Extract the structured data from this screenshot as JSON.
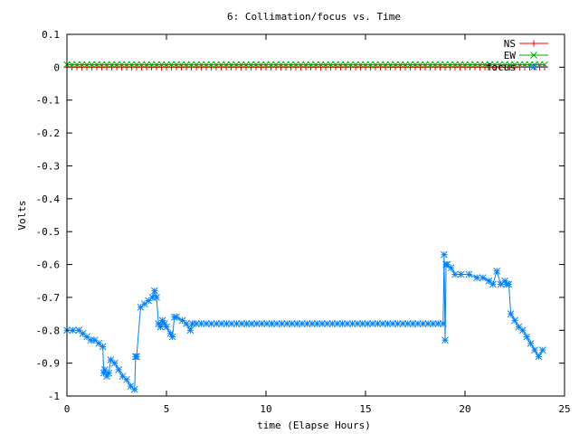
{
  "chart_data": {
    "type": "line",
    "title": "6: Collimation/focus vs. Time",
    "xlabel": "time (Elapse Hours)",
    "ylabel": "Volts",
    "xlim": [
      0,
      25
    ],
    "ylim": [
      -1,
      0.1
    ],
    "x_ticks": [
      "0",
      "5",
      "10",
      "15",
      "20",
      "25"
    ],
    "y_ticks": [
      "0.1",
      "0",
      "-0.1",
      "-0.2",
      "-0.3",
      "-0.4",
      "-0.5",
      "-0.6",
      "-0.7",
      "-0.8",
      "-0.9",
      "-1"
    ],
    "legend": "top-right",
    "grid": false,
    "series": [
      {
        "name": "NS",
        "color": "#ff0000",
        "marker": "plus",
        "x": [
          0,
          24
        ],
        "y": [
          0.0,
          0.0
        ]
      },
      {
        "name": "EW",
        "color": "#00aa00",
        "marker": "cross",
        "x": [
          0,
          24
        ],
        "y": [
          0.008,
          0.008
        ]
      },
      {
        "name": "focus",
        "color": "#0080ff",
        "marker": "star",
        "x": [
          0,
          0.6,
          0.8,
          1.0,
          1.2,
          1.4,
          1.6,
          1.8,
          1.85,
          1.9,
          2.0,
          2.1,
          2.2,
          2.4,
          2.6,
          2.8,
          3.0,
          3.2,
          3.4,
          3.45,
          3.5,
          3.7,
          3.9,
          4.1,
          4.3,
          4.4,
          4.5,
          4.6,
          4.7,
          4.8,
          4.9,
          5.0,
          5.2,
          5.3,
          5.4,
          5.5,
          5.8,
          6.0,
          6.2,
          6.3,
          6.5,
          18.9,
          18.95,
          19.0,
          19.05,
          19.1,
          19.3,
          19.5,
          19.8,
          20.2,
          20.6,
          20.9,
          21.2,
          21.4,
          21.6,
          21.8,
          22.0,
          22.1,
          22.2,
          22.3,
          22.5,
          22.7,
          22.9,
          23.1,
          23.3,
          23.5,
          23.7,
          23.9
        ],
        "y": [
          -0.8,
          -0.8,
          -0.81,
          -0.82,
          -0.83,
          -0.83,
          -0.84,
          -0.85,
          -0.93,
          -0.92,
          -0.94,
          -0.93,
          -0.89,
          -0.9,
          -0.92,
          -0.94,
          -0.95,
          -0.97,
          -0.98,
          -0.88,
          -0.88,
          -0.73,
          -0.72,
          -0.71,
          -0.7,
          -0.68,
          -0.7,
          -0.78,
          -0.79,
          -0.77,
          -0.78,
          -0.79,
          -0.81,
          -0.82,
          -0.76,
          -0.76,
          -0.77,
          -0.78,
          -0.8,
          -0.78,
          -0.78,
          -0.78,
          -0.57,
          -0.83,
          -0.6,
          -0.6,
          -0.61,
          -0.63,
          -0.63,
          -0.63,
          -0.64,
          -0.64,
          -0.65,
          -0.66,
          -0.62,
          -0.66,
          -0.65,
          -0.66,
          -0.66,
          -0.75,
          -0.77,
          -0.79,
          -0.8,
          -0.82,
          -0.84,
          -0.86,
          -0.88,
          -0.86
        ]
      }
    ]
  }
}
